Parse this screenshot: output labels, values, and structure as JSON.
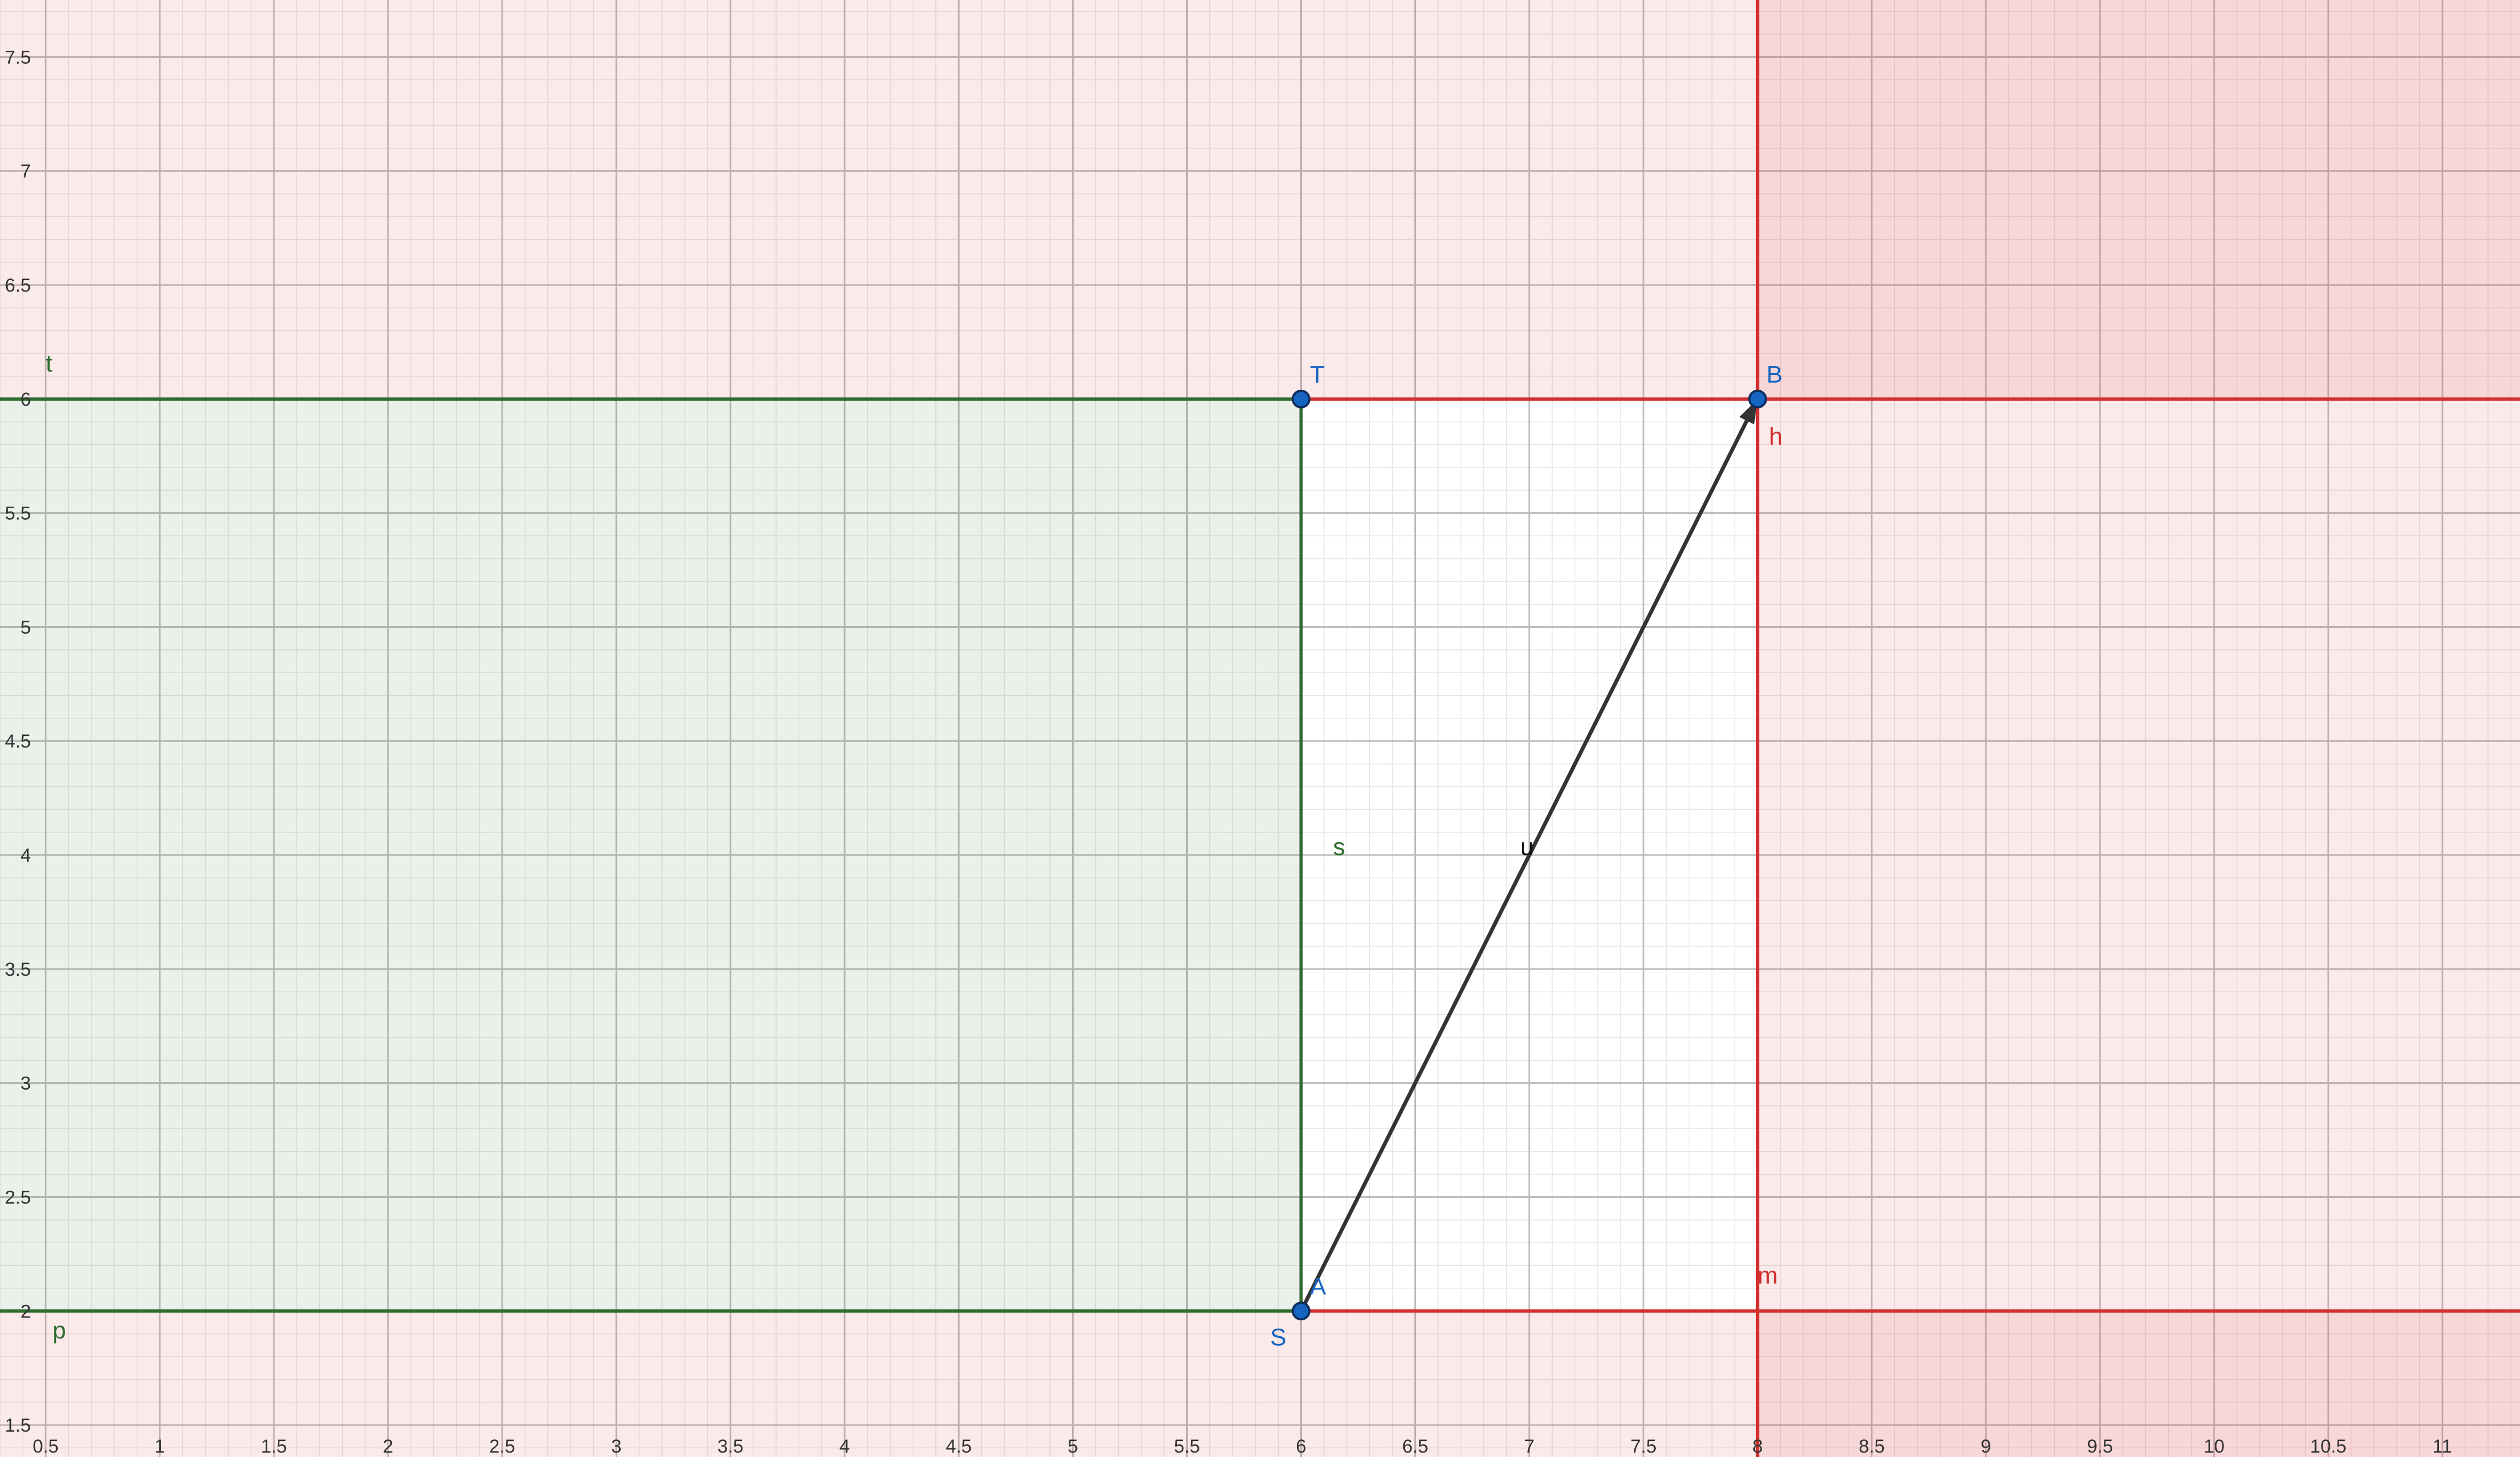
{
  "view": {
    "x_range": [
      0.3,
      11.34
    ],
    "y_range": [
      1.36,
      7.75
    ]
  },
  "axes": {
    "x_ticks": [
      "0.5",
      "1",
      "1.5",
      "2",
      "2.5",
      "3",
      "3.5",
      "4",
      "4.5",
      "5",
      "5.5",
      "6",
      "6.5",
      "7",
      "7.5",
      "8",
      "8.5",
      "9",
      "9.5",
      "10",
      "10.5",
      "11"
    ],
    "y_ticks": [
      "1.5",
      "2",
      "2.5",
      "3",
      "3.5",
      "4",
      "4.5",
      "5",
      "5.5",
      "6",
      "6.5",
      "7",
      "7.5"
    ]
  },
  "colors": {
    "region_red": "#d32f2f",
    "region_green": "#2e6b2e",
    "point_fill": "#1565c0",
    "point_label": "#1565c0",
    "vector": "#333333",
    "grid_major": "#bdbdbd",
    "grid_minor": "#e6e6e6"
  },
  "points": [
    {
      "id": "A",
      "label": "A",
      "x": 6,
      "y": 2
    },
    {
      "id": "T",
      "label": "T",
      "x": 6,
      "y": 6
    },
    {
      "id": "B",
      "label": "B",
      "x": 8,
      "y": 6
    }
  ],
  "extra_labels": [
    {
      "id": "S",
      "text": "S",
      "x": 5.9,
      "y": 1.85,
      "color": "#1565c0"
    }
  ],
  "lines": [
    {
      "id": "t",
      "label": "t",
      "type": "horizontal",
      "value": 6,
      "color": "#2e6b2e",
      "x_from": 0.3,
      "x_to": 6,
      "label_x": 0.5,
      "label_y": 6.12
    },
    {
      "id": "p",
      "label": "p",
      "type": "horizontal",
      "value": 2,
      "color": "#2e6b2e",
      "x_from": 0.3,
      "x_to": 6,
      "label_x": 0.53,
      "label_y": 1.88
    },
    {
      "id": "s",
      "label": "s",
      "type": "vertical",
      "value": 6,
      "color": "#2e6b2e",
      "y_from": 2,
      "y_to": 6,
      "label_x": 6.14,
      "label_y": 4.0
    },
    {
      "id": "h",
      "label": "h",
      "type": "vertical",
      "value": 8,
      "color": "#d32f2f",
      "label_x": 8.05,
      "label_y": 5.8
    },
    {
      "id": "m",
      "label": "m",
      "type": "horizontal",
      "value": 2,
      "color": "#d32f2f",
      "x_from": 6,
      "x_to": 11.34,
      "label_x": 8.0,
      "label_y": 2.12
    },
    {
      "id": "top_red",
      "label": "",
      "type": "horizontal",
      "value": 6,
      "color": "#d32f2f",
      "x_from": 6,
      "x_to": 11.34
    }
  ],
  "vector": {
    "id": "u",
    "label": "u",
    "from": [
      6,
      2
    ],
    "to": [
      8,
      6
    ],
    "label_x": 6.96,
    "label_y": 4.0
  },
  "regions": {
    "red_outside_band": {
      "y_low": 2,
      "y_high": 6,
      "opacity": 0.1
    },
    "red_right": {
      "x_min": 8,
      "opacity": 0.1
    },
    "green_rect": {
      "x_max": 6,
      "y_low": 2,
      "y_high": 6,
      "opacity": 0.1
    }
  }
}
